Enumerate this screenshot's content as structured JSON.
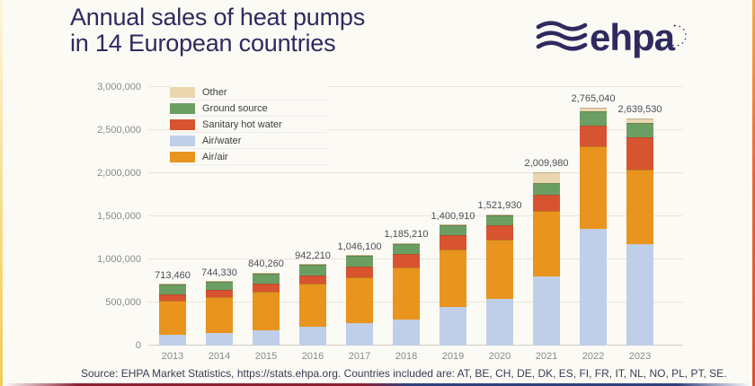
{
  "header": {
    "title_line1": "Annual sales of heat pumps",
    "title_line2": "in 14 European countries",
    "title_color": "#2e2a60"
  },
  "logo": {
    "text": "ehpa",
    "color": "#2e2a60"
  },
  "footer": {
    "text": "Source: EHPA Market Statistics, https://stats.ehpa.org. Countries included are: AT, BE, CH, DE, DK, ES, FI, FR, IT, NL, NO, PL, PT, SE."
  },
  "chart_data": {
    "type": "bar",
    "stacked": true,
    "title": "Annual sales of heat pumps in 14 European countries",
    "categories": [
      "2013",
      "2014",
      "2015",
      "2016",
      "2017",
      "2018",
      "2019",
      "2020",
      "2021",
      "2022",
      "2023"
    ],
    "series": [
      {
        "name": "Air/water",
        "color": "#bfcfe9",
        "values": [
          125000,
          148000,
          182000,
          222000,
          265000,
          298000,
          452000,
          540000,
          799000,
          1355000,
          1182000
        ]
      },
      {
        "name": "Air/air",
        "color": "#e8941f",
        "values": [
          398460,
          414330,
          446260,
          492210,
          530100,
          606210,
          658910,
          684930,
          762980,
          955040,
          864530
        ]
      },
      {
        "name": "Sanitary hot water",
        "color": "#d85330",
        "values": [
          72000,
          82000,
          95000,
          103000,
          124000,
          158000,
          170000,
          172000,
          190000,
          240000,
          368000
        ]
      },
      {
        "name": "Ground source",
        "color": "#6b9e63",
        "values": [
          113000,
          95000,
          112000,
          120000,
          120000,
          115000,
          112000,
          115000,
          133000,
          172000,
          172000
        ]
      },
      {
        "name": "Other",
        "color": "#ead7b0",
        "values": [
          5000,
          5000,
          5000,
          5000,
          7000,
          8000,
          8000,
          10000,
          125000,
          43000,
          53000
        ]
      }
    ],
    "totals": [
      713460,
      744330,
      840260,
      942210,
      1046100,
      1185210,
      1400910,
      1521930,
      2009980,
      2765040,
      2639530
    ],
    "total_labels": [
      "713,460",
      "744,330",
      "840,260",
      "942,210",
      "1,046,100",
      "1,185,210",
      "1,400,910",
      "1,521,930",
      "2,009,980",
      "2,765,040",
      "2,639,530"
    ],
    "ylim": [
      0,
      3000000
    ],
    "ytick_step": 500000,
    "ytick_labels": [
      "0",
      "500,000",
      "1,000,000",
      "1,500,000",
      "2,000,000",
      "2,500,000",
      "3,000,000"
    ],
    "grid": true,
    "legend_position": "top-left",
    "legend": [
      {
        "label": "Other",
        "color": "#ead7b0"
      },
      {
        "label": "Ground source",
        "color": "#6b9e63"
      },
      {
        "label": "Sanitary hot water",
        "color": "#d85330"
      },
      {
        "label": "Air/water",
        "color": "#bfcfe9"
      },
      {
        "label": "Air/air",
        "color": "#e8941f"
      }
    ]
  }
}
